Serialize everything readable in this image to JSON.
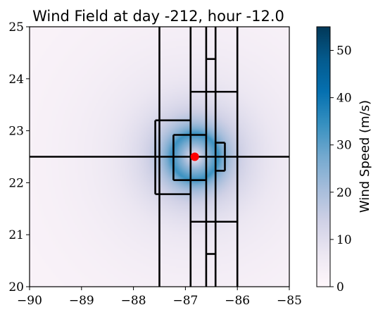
{
  "chart_data": {
    "type": "heatmap",
    "title": "Wind Field at day -212, hour -12.0",
    "xlabel": "",
    "ylabel": "",
    "xlim": [
      -90,
      -85
    ],
    "ylim": [
      20,
      25
    ],
    "x_ticks": [
      -90,
      -89,
      -88,
      -87,
      -86,
      -85
    ],
    "x_tick_labels": [
      "−90",
      "−89",
      "−88",
      "−87",
      "−86",
      "−85"
    ],
    "y_ticks": [
      20,
      21,
      22,
      23,
      24,
      25
    ],
    "y_tick_labels": [
      "20",
      "21",
      "22",
      "23",
      "24",
      "25"
    ],
    "colorbar": {
      "label": "Wind Speed (m/s)",
      "range": [
        0,
        55
      ],
      "ticks": [
        0,
        10,
        20,
        30,
        40,
        50
      ],
      "tick_labels": [
        "0",
        "10",
        "20",
        "30",
        "40",
        "50"
      ],
      "colormap": "PuBu",
      "color_low": "#fff7fb",
      "color_high": "#023858"
    },
    "storm_center": {
      "lon": -86.82,
      "lat": 22.5,
      "color": "#ff0000"
    },
    "max_wind_speed": 34,
    "radius_max_wind": 0.45,
    "grid_lines": {
      "vertical": [
        {
          "x": -87.5,
          "y": [
            20,
            25
          ]
        },
        {
          "x": -86.9,
          "y": [
            20,
            25
          ]
        },
        {
          "x": -86.6,
          "y": [
            20,
            25
          ]
        },
        {
          "x": -86.42,
          "y": [
            20,
            25
          ]
        },
        {
          "x": -86.0,
          "y": [
            20,
            25
          ]
        },
        {
          "x": -87.58,
          "y": [
            21.78,
            23.2
          ]
        },
        {
          "x": -87.23,
          "y": [
            22.05,
            22.92
          ]
        },
        {
          "x": -86.24,
          "y": [
            22.23,
            22.77
          ]
        }
      ],
      "horizontal": [
        {
          "y": 22.5,
          "x": [
            -90,
            -85
          ]
        },
        {
          "y": 23.2,
          "x": [
            -87.58,
            -86.9
          ]
        },
        {
          "y": 21.78,
          "x": [
            -87.58,
            -86.9
          ]
        },
        {
          "y": 22.92,
          "x": [
            -87.23,
            -86.6
          ]
        },
        {
          "y": 22.05,
          "x": [
            -87.23,
            -86.6
          ]
        },
        {
          "y": 22.77,
          "x": [
            -86.42,
            -86.24
          ]
        },
        {
          "y": 22.23,
          "x": [
            -86.42,
            -86.24
          ]
        },
        {
          "y": 23.75,
          "x": [
            -86.9,
            -86.0
          ]
        },
        {
          "y": 21.25,
          "x": [
            -86.9,
            -86.0
          ]
        },
        {
          "y": 24.38,
          "x": [
            -86.6,
            -86.42
          ]
        },
        {
          "y": 20.63,
          "x": [
            -86.6,
            -86.42
          ]
        }
      ]
    }
  }
}
